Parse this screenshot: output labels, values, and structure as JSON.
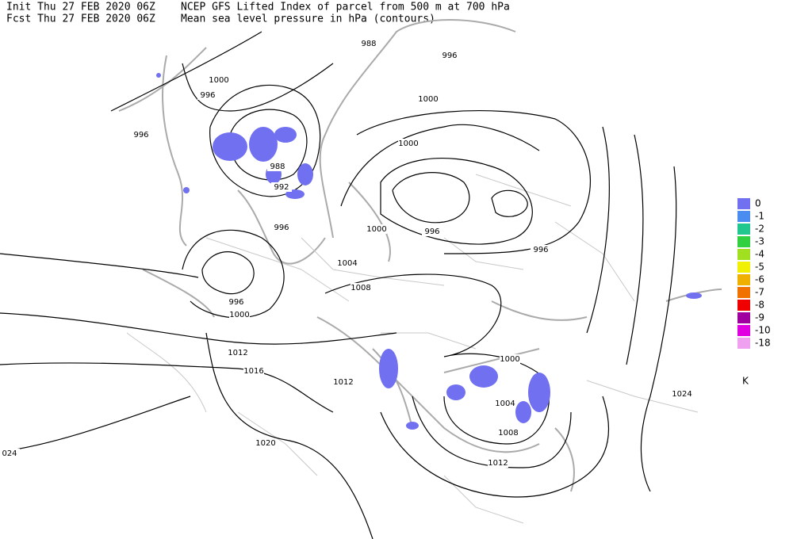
{
  "header": {
    "init": "Init  Thu 27 FEB 2020 06Z",
    "fcst": "Fcst Thu 27 FEB 2020 06Z",
    "title": "NCEP GFS Lifted Index of parcel from 500 m at 700 hPa",
    "subtitle": "Mean sea level pressure in hPa (contours)"
  },
  "contour_labels": [
    "988",
    "996",
    "1000",
    "996",
    "1000",
    "996",
    "1000",
    "988",
    "992",
    "996",
    "996",
    "1000",
    "996",
    "1004",
    "1008",
    "996",
    "1000",
    "1012",
    "1016",
    "1012",
    "1000",
    "1004",
    "1008",
    "1020",
    "1012",
    "1024",
    "024"
  ],
  "legend": {
    "items": [
      {
        "label": "0",
        "color": "#7070f0"
      },
      {
        "label": "-1",
        "color": "#4a8cf0"
      },
      {
        "label": "-2",
        "color": "#20c890"
      },
      {
        "label": "-3",
        "color": "#30d040"
      },
      {
        "label": "-4",
        "color": "#a0e020"
      },
      {
        "label": "-5",
        "color": "#f0f000"
      },
      {
        "label": "-6",
        "color": "#f0b000"
      },
      {
        "label": "-7",
        "color": "#f07000"
      },
      {
        "label": "-8",
        "color": "#f00000"
      },
      {
        "label": "-9",
        "color": "#a000a0"
      },
      {
        "label": "-10",
        "color": "#e000e0"
      },
      {
        "label": "-18",
        "color": "#f0a0f0"
      }
    ],
    "unit": "K"
  }
}
